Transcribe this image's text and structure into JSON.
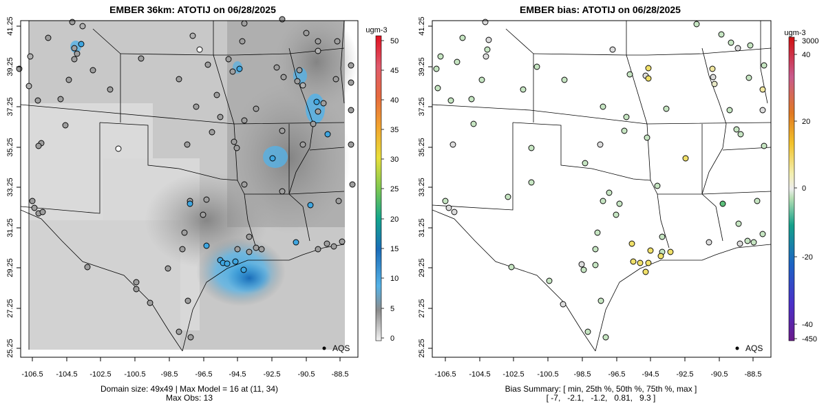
{
  "left_panel": {
    "title": "EMBER 36km: ATOTIJ on 06/28/2025",
    "legend_label": "AQS",
    "footer_line1": "Domain size: 49x49 | Max Model = 16 at (11, 34)",
    "footer_line2": "Max Obs: 13",
    "colorbar_unit": "ugm-3",
    "colorbar_ticks": [
      "50",
      "45",
      "40",
      "35",
      "30",
      "25",
      "20",
      "15",
      "10",
      "5",
      "0"
    ]
  },
  "right_panel": {
    "title": "EMBER bias: ATOTIJ on 06/28/2025",
    "legend_label": "AQS",
    "footer_line1": "Bias Summary: [ min, 25th %, 50th %, 75th %, max ]",
    "footer_line2": "[ -7,   -2.1,   -1.2,   0.81,   9.3 ]",
    "colorbar_unit": "ugm-3",
    "colorbar_ticks": [
      "3000",
      "40",
      "20",
      "0",
      "-20",
      "-40",
      "-450"
    ]
  },
  "axes": {
    "x_ticks": [
      "-106.5",
      "-104.5",
      "-102.5",
      "-100.5",
      "-98.5",
      "-96.5",
      "-94.5",
      "-92.5",
      "-90.5",
      "-88.5"
    ],
    "y_ticks": [
      "41.25",
      "39.25",
      "37.25",
      "35.25",
      "33.25",
      "31.25",
      "29.25",
      "27.25",
      "25.25"
    ]
  },
  "colors": {
    "model_low": "#d9d9d9",
    "model_mid": "#8c8c8c",
    "model_high": "#3fa6e0",
    "model_peak": "#1a6cb8",
    "bias_neutral": "#dcdcdc",
    "bias_neg": "#b7dfb4",
    "bias_pos": "#f0e06a"
  }
}
